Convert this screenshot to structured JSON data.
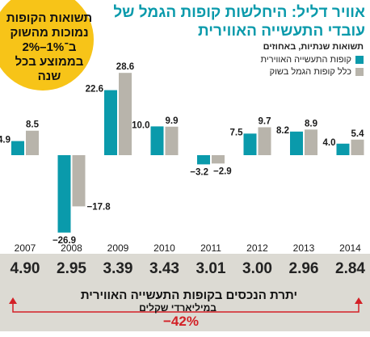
{
  "header": {
    "title": "אוויר דליל: היחלשות קופות הגמל של עובדי התעשייה האווירית",
    "subtitle": "תשואות שנתיות, באחוזים"
  },
  "callout": {
    "lines": [
      "תשואות הקופות",
      "נמוכות מהשוק",
      "ב־1%–2%",
      "בממוצע בכל",
      "שנה"
    ]
  },
  "colors": {
    "teal": "#0a9aab",
    "gray": "#b8b4ab",
    "yellow": "#f7c418",
    "red": "#d32026",
    "panel": "#dcdad3"
  },
  "chart_data": {
    "type": "bar",
    "categories": [
      "2007",
      "2008",
      "2009",
      "2010",
      "2011",
      "2012",
      "2013",
      "2014"
    ],
    "series": [
      {
        "name": "קופות התעשייה האווירית",
        "color": "#0a9aab",
        "values": [
          4.9,
          -26.9,
          22.6,
          10.0,
          -3.2,
          7.5,
          8.2,
          4.0
        ],
        "labels": [
          "4.9",
          "−26.9",
          "22.6",
          "10.0",
          "−3.2",
          "7.5",
          "8.2",
          "4.0"
        ]
      },
      {
        "name": "כלל קופות הגמל בשוק",
        "color": "#b8b4ab",
        "values": [
          8.5,
          -17.8,
          28.6,
          9.9,
          -2.9,
          9.7,
          8.9,
          5.4
        ],
        "labels": [
          "8.5",
          "−17.8",
          "28.6",
          "9.9",
          "−2.9",
          "9.7",
          "8.9",
          "5.4"
        ]
      }
    ],
    "ylim": [
      -28,
      30
    ],
    "grid": false,
    "legend": "top-right"
  },
  "assets": {
    "values": [
      "4.90",
      "2.95",
      "3.39",
      "3.43",
      "3.01",
      "3.00",
      "2.96",
      "2.84"
    ],
    "title": "יתרת הנכסים בקופות התעשייה האווירית",
    "unit": "במיליארדי שקלים",
    "change": "−42%"
  }
}
